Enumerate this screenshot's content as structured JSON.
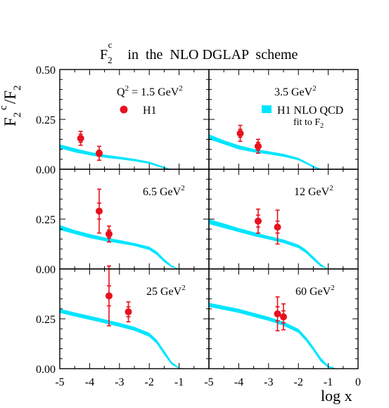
{
  "figure": {
    "title_main": "F",
    "title_sub": "2",
    "title_sup": "c",
    "title_rest": "in  the  NLO DGLAP  scheme",
    "ylabel_F": "F",
    "ylabel_sub1": "2",
    "ylabel_sup": "c",
    "ylabel_rest": "/F",
    "ylabel_sub2": "2",
    "xlabel": "log x",
    "legend_data": "H1",
    "legend_band_line1": "H1 NLO QCD",
    "legend_band_line2": "fit to F",
    "legend_band_sub": "2"
  },
  "colors": {
    "data_points": "#e8121e",
    "qcd_band": "#00e5ff",
    "axes": "#000000"
  },
  "chart_data": {
    "type": "scatter",
    "layout_grid": "3 rows x 2 columns, shared axes",
    "xlabel": "log x",
    "ylabel": "F2c/F2",
    "xlim": [
      -5,
      0
    ],
    "ylim": [
      0,
      0.5
    ],
    "x_ticks": [
      "-5",
      "-4",
      "-3",
      "-2",
      "-1",
      "0"
    ],
    "y_ticks": [
      "0.00",
      "0.25",
      "0.50"
    ],
    "series_names": [
      "H1",
      "H1 NLO QCD fit to F2"
    ],
    "panels": [
      {
        "label_prefix": "Q",
        "label_sup": "2",
        "label_value": " = 1.5 GeV",
        "label_unit_sup": "2",
        "points": [
          {
            "x": -4.3,
            "y": 0.155,
            "stat": 0.02,
            "tot": 0.035
          },
          {
            "x": -3.68,
            "y": 0.08,
            "stat": 0.015,
            "tot": 0.035
          }
        ],
        "band_x": [
          -5.0,
          -4.5,
          -4.0,
          -3.5,
          -3.0,
          -2.5,
          -2.0,
          -1.75,
          -1.5,
          -1.35,
          -1.2
        ],
        "band_lo": [
          0.105,
          0.085,
          0.07,
          0.058,
          0.05,
          0.04,
          0.027,
          0.015,
          0.004,
          0.0,
          0.0
        ],
        "band_hi": [
          0.125,
          0.105,
          0.087,
          0.073,
          0.063,
          0.052,
          0.038,
          0.025,
          0.012,
          0.004,
          0.0
        ]
      },
      {
        "label_prefix": "",
        "label_sup": "",
        "label_value": "3.5 GeV",
        "label_unit_sup": "2",
        "points": [
          {
            "x": -3.95,
            "y": 0.18,
            "stat": 0.02,
            "tot": 0.04
          },
          {
            "x": -3.35,
            "y": 0.115,
            "stat": 0.02,
            "tot": 0.035
          }
        ],
        "band_x": [
          -5.0,
          -4.5,
          -4.0,
          -3.5,
          -3.0,
          -2.5,
          -2.0,
          -1.75,
          -1.5,
          -1.3,
          -1.15
        ],
        "band_lo": [
          0.15,
          0.125,
          0.1,
          0.085,
          0.075,
          0.063,
          0.045,
          0.027,
          0.008,
          0.0,
          0.0
        ],
        "band_hi": [
          0.175,
          0.145,
          0.12,
          0.102,
          0.09,
          0.077,
          0.057,
          0.038,
          0.018,
          0.005,
          0.0
        ]
      },
      {
        "label_prefix": "",
        "label_sup": "",
        "label_value": "6.5 GeV",
        "label_unit_sup": "2",
        "points": [
          {
            "x": -3.68,
            "y": 0.29,
            "stat": 0.04,
            "tot": 0.11
          },
          {
            "x": -3.35,
            "y": 0.175,
            "stat": 0.02,
            "tot": 0.04
          }
        ],
        "band_x": [
          -5.0,
          -4.5,
          -4.0,
          -3.5,
          -3.0,
          -2.5,
          -2.0,
          -1.75,
          -1.5,
          -1.25,
          -1.0
        ],
        "band_lo": [
          0.195,
          0.175,
          0.155,
          0.14,
          0.128,
          0.115,
          0.095,
          0.07,
          0.035,
          0.008,
          0.0
        ],
        "band_hi": [
          0.22,
          0.195,
          0.175,
          0.158,
          0.145,
          0.13,
          0.112,
          0.088,
          0.05,
          0.018,
          0.0
        ]
      },
      {
        "label_prefix": "",
        "label_sup": "",
        "label_value": "12 GeV",
        "label_unit_sup": "2",
        "points": [
          {
            "x": -3.35,
            "y": 0.24,
            "stat": 0.03,
            "tot": 0.06
          },
          {
            "x": -2.7,
            "y": 0.21,
            "stat": 0.03,
            "tot": 0.085
          }
        ],
        "band_x": [
          -5.0,
          -4.5,
          -4.0,
          -3.5,
          -3.0,
          -2.5,
          -2.0,
          -1.75,
          -1.5,
          -1.25,
          -1.0
        ],
        "band_lo": [
          0.225,
          0.205,
          0.185,
          0.165,
          0.148,
          0.13,
          0.105,
          0.08,
          0.045,
          0.012,
          0.0
        ],
        "band_hi": [
          0.25,
          0.228,
          0.205,
          0.185,
          0.165,
          0.148,
          0.122,
          0.098,
          0.062,
          0.025,
          0.0
        ]
      },
      {
        "label_prefix": "",
        "label_sup": "",
        "label_value": "25 GeV",
        "label_unit_sup": "2",
        "points": [
          {
            "x": -3.35,
            "y": 0.365,
            "stat": 0.05,
            "tot": 0.15
          },
          {
            "x": -2.7,
            "y": 0.285,
            "stat": 0.025,
            "tot": 0.05
          }
        ],
        "band_x": [
          -5.0,
          -4.5,
          -4.0,
          -3.5,
          -3.0,
          -2.5,
          -2.0,
          -1.75,
          -1.5,
          -1.25,
          -1.0,
          -0.85
        ],
        "band_lo": [
          0.28,
          0.262,
          0.245,
          0.228,
          0.21,
          0.19,
          0.16,
          0.125,
          0.07,
          0.02,
          0.0,
          0.0
        ],
        "band_hi": [
          0.3,
          0.282,
          0.265,
          0.248,
          0.23,
          0.21,
          0.18,
          0.145,
          0.09,
          0.035,
          0.005,
          0.0
        ]
      },
      {
        "label_prefix": "",
        "label_sup": "",
        "label_value": "60 GeV",
        "label_unit_sup": "2",
        "points": [
          {
            "x": -2.7,
            "y": 0.275,
            "stat": 0.035,
            "tot": 0.085
          },
          {
            "x": -2.5,
            "y": 0.26,
            "stat": 0.03,
            "tot": 0.065
          }
        ],
        "band_x": [
          -5.0,
          -4.5,
          -4.0,
          -3.5,
          -3.0,
          -2.5,
          -2.0,
          -1.75,
          -1.5,
          -1.25,
          -1.0,
          -0.75,
          -0.6
        ],
        "band_lo": [
          0.31,
          0.295,
          0.28,
          0.26,
          0.24,
          0.215,
          0.18,
          0.14,
          0.09,
          0.035,
          0.005,
          0.0,
          0.0
        ],
        "band_hi": [
          0.33,
          0.315,
          0.3,
          0.28,
          0.26,
          0.235,
          0.2,
          0.16,
          0.11,
          0.055,
          0.015,
          0.002,
          0.0
        ]
      }
    ]
  }
}
